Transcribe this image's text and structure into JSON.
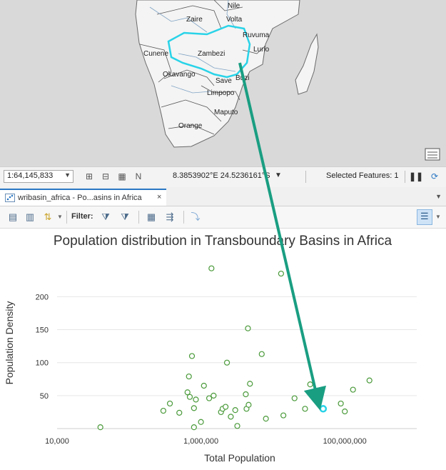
{
  "map": {
    "labels": [
      "Nile",
      "Zaire",
      "Volta",
      "Ruvuma",
      "Cunene",
      "Zambezi",
      "Lurio",
      "Okavango",
      "Save",
      "Buzi",
      "Limpopo",
      "Maputo",
      "Orange"
    ],
    "highlight_color": "#29d3e8"
  },
  "statusbar": {
    "scale": "1:64,145,833",
    "coordinates": "8.3853902°E 24.5236161°S",
    "selected_features": "Selected Features: 1"
  },
  "tab": {
    "label": "wribasin_africa - Po...asins in Africa",
    "close": "×"
  },
  "toolbar": {
    "filter_label": "Filter:"
  },
  "arrow_color": "#1a9e82",
  "chart_data": {
    "type": "scatter",
    "title": "Population distribution in Transboundary Basins in Africa",
    "xlabel": "Total Population",
    "ylabel": "Population Density",
    "x_scale": "log",
    "xlim": [
      10000,
      1000000000
    ],
    "ylim": [
      0,
      260
    ],
    "x_ticks": [
      "10,000",
      "1,000,000",
      "100,000,000"
    ],
    "y_ticks": [
      "50",
      "100",
      "150",
      "200"
    ],
    "grid": "horizontal",
    "marker_color": "#4a9a3a",
    "selected_color": "#29d3e8",
    "points": [
      {
        "x": 40000,
        "y": 2
      },
      {
        "x": 300000,
        "y": 27
      },
      {
        "x": 370000,
        "y": 38
      },
      {
        "x": 500000,
        "y": 24
      },
      {
        "x": 650000,
        "y": 55
      },
      {
        "x": 700000,
        "y": 48
      },
      {
        "x": 680000,
        "y": 79
      },
      {
        "x": 750000,
        "y": 110
      },
      {
        "x": 800000,
        "y": 31
      },
      {
        "x": 850000,
        "y": 44
      },
      {
        "x": 800000,
        "y": 2
      },
      {
        "x": 1000000,
        "y": 10
      },
      {
        "x": 1100000,
        "y": 65
      },
      {
        "x": 1300000,
        "y": 46
      },
      {
        "x": 1400000,
        "y": 243
      },
      {
        "x": 1500000,
        "y": 50
      },
      {
        "x": 1900000,
        "y": 25
      },
      {
        "x": 2000000,
        "y": 30
      },
      {
        "x": 2200000,
        "y": 33
      },
      {
        "x": 2300000,
        "y": 100
      },
      {
        "x": 2600000,
        "y": 18
      },
      {
        "x": 3000000,
        "y": 28
      },
      {
        "x": 3200000,
        "y": 4
      },
      {
        "x": 4200000,
        "y": 52
      },
      {
        "x": 4300000,
        "y": 30
      },
      {
        "x": 4500000,
        "y": 152
      },
      {
        "x": 4600000,
        "y": 36
      },
      {
        "x": 4800000,
        "y": 68
      },
      {
        "x": 7000000,
        "y": 113
      },
      {
        "x": 8000000,
        "y": 15
      },
      {
        "x": 13000000,
        "y": 235
      },
      {
        "x": 14000000,
        "y": 20
      },
      {
        "x": 20000000,
        "y": 46
      },
      {
        "x": 28000000,
        "y": 30
      },
      {
        "x": 33000000,
        "y": 67
      },
      {
        "x": 88000000,
        "y": 38
      },
      {
        "x": 100000000,
        "y": 26
      },
      {
        "x": 130000000,
        "y": 59
      },
      {
        "x": 220000000,
        "y": 73
      }
    ],
    "selected_point": {
      "x": 50000000,
      "y": 30
    }
  }
}
